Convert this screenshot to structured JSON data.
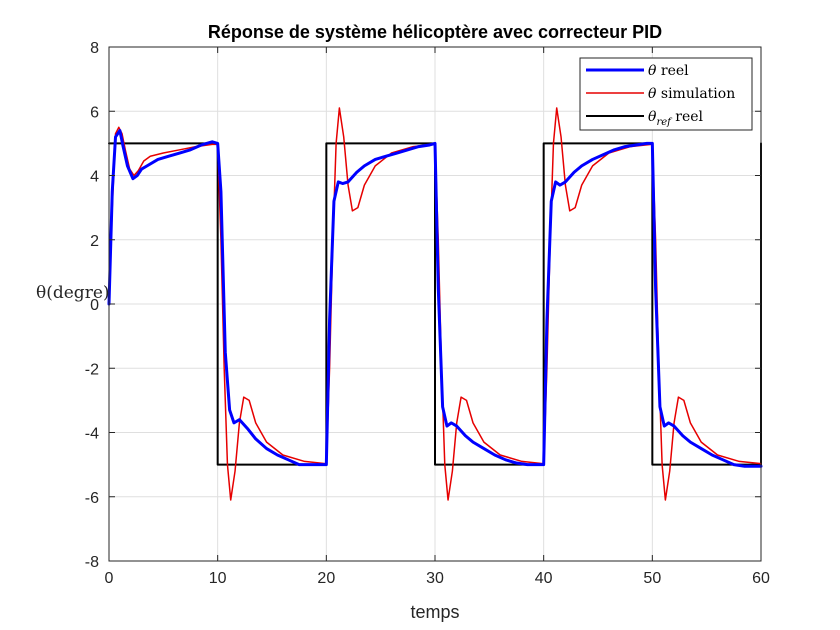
{
  "chart_data": {
    "type": "line",
    "title": "Réponse de système hélicoptère avec correcteur PID",
    "xlabel": "temps",
    "ylabel": "θ(degre)",
    "xlim": [
      0,
      60
    ],
    "ylim": [
      -8,
      8
    ],
    "xticks": [
      0,
      10,
      20,
      30,
      40,
      50,
      60
    ],
    "yticks": [
      -8,
      -6,
      -4,
      -2,
      0,
      2,
      4,
      6,
      8
    ],
    "grid": true,
    "legend_position": "top-right",
    "series": [
      {
        "name": "θ reel",
        "legend_label": {
          "symbol": "θ",
          "text": " reel"
        },
        "color": "#0000ff",
        "line_width": 3,
        "x": [
          0,
          0.3,
          0.6,
          1.0,
          1.3,
          1.7,
          2.2,
          2.6,
          3.0,
          3.5,
          4.5,
          5.5,
          6.5,
          7.5,
          8.5,
          9.5,
          10.0,
          10.3,
          10.7,
          11.1,
          11.5,
          12.0,
          12.8,
          13.5,
          14.5,
          15.5,
          16.5,
          17.5,
          18.5,
          19.5,
          20.0,
          20.3,
          20.7,
          21.1,
          21.5,
          22.0,
          22.8,
          23.5,
          24.5,
          25.5,
          26.5,
          27.5,
          28.5,
          29.5,
          30.0,
          30.3,
          30.7,
          31.1,
          31.5,
          32.0,
          32.8,
          33.5,
          34.5,
          35.5,
          36.5,
          37.5,
          38.5,
          39.5,
          40.0,
          40.3,
          40.7,
          41.1,
          41.5,
          42.0,
          42.8,
          43.5,
          44.5,
          45.5,
          46.5,
          47.5,
          48.5,
          49.5,
          50.0,
          50.3,
          50.7,
          51.1,
          51.5,
          52.0,
          52.8,
          53.5,
          54.5,
          55.5,
          56.5,
          57.5,
          58.5,
          59.5,
          60.0
        ],
        "y": [
          0,
          3.5,
          5.2,
          5.4,
          4.9,
          4.3,
          3.9,
          4.0,
          4.2,
          4.3,
          4.5,
          4.6,
          4.7,
          4.8,
          4.95,
          5.05,
          5.0,
          3.5,
          -1.5,
          -3.3,
          -3.7,
          -3.6,
          -3.9,
          -4.2,
          -4.5,
          -4.7,
          -4.85,
          -5.0,
          -5.0,
          -5.0,
          -5.0,
          -0.5,
          3.2,
          3.8,
          3.75,
          3.8,
          4.1,
          4.3,
          4.5,
          4.6,
          4.7,
          4.8,
          4.9,
          4.95,
          5.0,
          0.5,
          -3.2,
          -3.8,
          -3.7,
          -3.8,
          -4.1,
          -4.3,
          -4.5,
          -4.7,
          -4.85,
          -4.95,
          -5.0,
          -5.0,
          -5.0,
          -0.5,
          3.2,
          3.8,
          3.7,
          3.8,
          4.1,
          4.3,
          4.5,
          4.65,
          4.8,
          4.9,
          4.95,
          5.0,
          5.0,
          0.5,
          -3.2,
          -3.8,
          -3.7,
          -3.8,
          -4.1,
          -4.3,
          -4.5,
          -4.7,
          -4.85,
          -5.0,
          -5.05,
          -5.05,
          -5.05
        ]
      },
      {
        "name": "θ simulation",
        "legend_label": {
          "symbol": "θ",
          "text": " simulation"
        },
        "color": "#e60000",
        "line_width": 1.5,
        "x": [
          0,
          0.3,
          0.6,
          0.9,
          1.2,
          1.5,
          1.9,
          2.3,
          2.7,
          3.2,
          3.8,
          5.0,
          6.5,
          8.0,
          9.5,
          10.0,
          10.3,
          10.6,
          10.9,
          11.2,
          11.6,
          12.0,
          12.4,
          12.9,
          13.5,
          14.5,
          16.0,
          18.0,
          19.9,
          20.0,
          20.3,
          20.6,
          20.9,
          21.2,
          21.6,
          22.0,
          22.4,
          22.9,
          23.5,
          24.5,
          26.0,
          28.0,
          29.9,
          30.0,
          30.3,
          30.6,
          30.9,
          31.2,
          31.6,
          32.0,
          32.4,
          32.9,
          33.5,
          34.5,
          36.0,
          38.0,
          39.9,
          40.0,
          40.3,
          40.6,
          40.9,
          41.2,
          41.6,
          42.0,
          42.4,
          42.9,
          43.5,
          44.5,
          46.0,
          48.0,
          49.9,
          50.0,
          50.3,
          50.6,
          50.9,
          51.2,
          51.6,
          52.0,
          52.4,
          52.9,
          53.5,
          54.5,
          56.0,
          58.0,
          60.0
        ],
        "y": [
          0,
          3.0,
          5.3,
          5.5,
          5.3,
          4.8,
          4.2,
          4.0,
          4.15,
          4.45,
          4.6,
          4.7,
          4.8,
          4.9,
          4.97,
          4.97,
          2.0,
          -2.0,
          -5.0,
          -6.1,
          -5.2,
          -3.7,
          -2.9,
          -3.0,
          -3.7,
          -4.3,
          -4.7,
          -4.9,
          -4.97,
          -4.97,
          -2.0,
          2.0,
          5.0,
          6.1,
          5.2,
          3.7,
          2.9,
          3.0,
          3.7,
          4.3,
          4.7,
          4.9,
          4.97,
          4.97,
          2.0,
          -2.0,
          -5.0,
          -6.1,
          -5.2,
          -3.7,
          -2.9,
          -3.0,
          -3.7,
          -4.3,
          -4.7,
          -4.9,
          -4.97,
          -4.97,
          -2.0,
          2.0,
          5.0,
          6.1,
          5.2,
          3.7,
          2.9,
          3.0,
          3.7,
          4.3,
          4.7,
          4.9,
          4.97,
          4.97,
          2.0,
          -2.0,
          -5.0,
          -6.1,
          -5.2,
          -3.7,
          -2.9,
          -3.0,
          -3.7,
          -4.3,
          -4.7,
          -4.9,
          -4.97
        ]
      },
      {
        "name": "θref reel",
        "legend_label": {
          "symbol": "θ",
          "sub": "ref",
          "text": " reel"
        },
        "color": "#000000",
        "line_width": 2,
        "x": [
          0,
          10,
          10,
          20,
          20,
          30,
          30,
          40,
          40,
          50,
          50,
          60,
          60
        ],
        "y": [
          5,
          5,
          -5,
          -5,
          5,
          5,
          -5,
          -5,
          5,
          5,
          -5,
          -5,
          5
        ]
      }
    ]
  }
}
